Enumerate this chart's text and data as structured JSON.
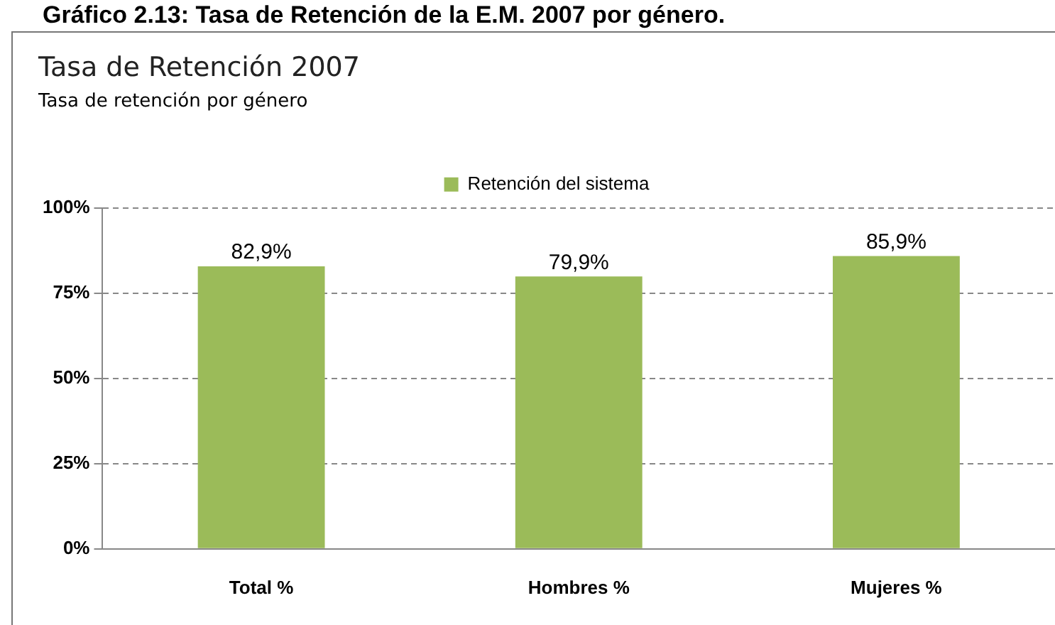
{
  "chart_data": {
    "type": "bar",
    "title": "Tasa de Retención 2007",
    "subtitle": "Tasa de retención por género",
    "annotations": [
      "Gráfico 2.13: Tasa de Retención de la E.M. 2007 por género."
    ],
    "categories": [
      "Total %",
      "Hombres %",
      "Mujeres %"
    ],
    "series": [
      {
        "name": "Retención del sistema",
        "color": "#9bbb59",
        "values": [
          82.9,
          79.9,
          85.9
        ],
        "value_labels": [
          "82,9%",
          "79,9%",
          "85,9%"
        ]
      }
    ],
    "ylim": [
      0,
      100
    ],
    "yticks": [
      {
        "value": 0,
        "label": "0%"
      },
      {
        "value": 25,
        "label": "25%"
      },
      {
        "value": 50,
        "label": "50%"
      },
      {
        "value": 75,
        "label": "75%"
      },
      {
        "value": 100,
        "label": "100%"
      }
    ],
    "grid": "y",
    "legend": "top"
  }
}
